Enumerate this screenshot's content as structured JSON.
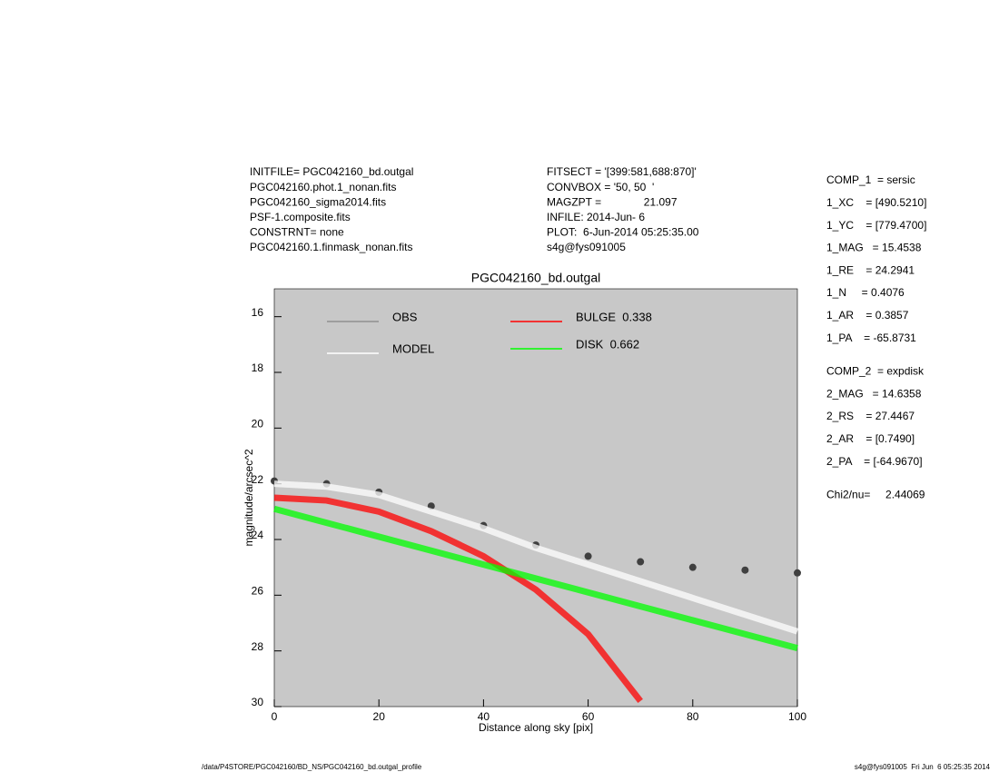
{
  "header": {
    "left": [
      "INITFILE= PGC042160_bd.outgal",
      "PGC042160.phot.1_nonan.fits",
      "PGC042160_sigma2014.fits",
      "PSF-1.composite.fits",
      "CONSTRNT= none",
      "PGC042160.1.finmask_nonan.fits"
    ],
    "middle": [
      "FITSECT = '[399:581,688:870]'",
      "CONVBOX = '50, 50  '",
      "MAGZPT =              21.097",
      "INFILE: 2014-Jun- 6",
      "PLOT:  6-Jun-2014 05:25:35.00",
      "s4g@fys091005"
    ],
    "params": [
      "COMP_1  = sersic",
      "1_XC    = [490.5210]",
      "1_YC    = [779.4700]",
      "1_MAG   = 15.4538",
      "1_RE    = 24.2941",
      "1_N     = 0.4076",
      "1_AR    = 0.3857",
      "1_PA    = -65.8731",
      "COMP_2  = expdisk",
      "2_MAG   = 14.6358",
      "2_RS    = 27.4467",
      "2_AR    = [0.7490]",
      "2_PA    = [-64.9670]",
      "Chi2/nu=     2.44069"
    ],
    "footer_left": "/data/P4STORE/PGC042160/BD_NS/PGC042160_bd.outgal_profile",
    "footer_right": "s4g@fys091005  Fri Jun  6 05:25:35 2014"
  },
  "chart_data": {
    "type": "line",
    "title": "PGC042160_bd.outgal",
    "x_label": "Distance along sky [pix]",
    "y_label": "magnitude/arcsec^2",
    "x": [
      0,
      10,
      20,
      30,
      40,
      50,
      60,
      70,
      80,
      90,
      100
    ],
    "series": [
      {
        "name": "OBS",
        "color": "#404040",
        "mode": "markers",
        "values": [
          21.9,
          22.0,
          22.3,
          22.8,
          23.5,
          24.2,
          24.6,
          24.8,
          25.0,
          25.1,
          25.2
        ]
      },
      {
        "name": "MODEL",
        "color": "#ffffff",
        "values": [
          22.0,
          22.1,
          22.4,
          23.0,
          23.6,
          24.3,
          24.9,
          25.5,
          26.1,
          26.7,
          27.3
        ]
      },
      {
        "name": "BULGE  0.338",
        "color": "#ff0000",
        "values": [
          22.5,
          22.6,
          23.0,
          23.7,
          24.6,
          25.8,
          27.4,
          29.8,
          null,
          null,
          null
        ]
      },
      {
        "name": "DISK  0.662",
        "color": "#00ff00",
        "values": [
          22.9,
          23.4,
          23.9,
          24.4,
          24.9,
          25.4,
          25.9,
          26.4,
          26.9,
          27.4,
          27.9
        ]
      }
    ],
    "xlim": [
      0,
      100
    ],
    "xticks": [
      0,
      20,
      40,
      60,
      80,
      100
    ],
    "ylim": [
      30,
      15
    ],
    "yticks": [
      16,
      18,
      20,
      22,
      24,
      26,
      28,
      30
    ]
  }
}
